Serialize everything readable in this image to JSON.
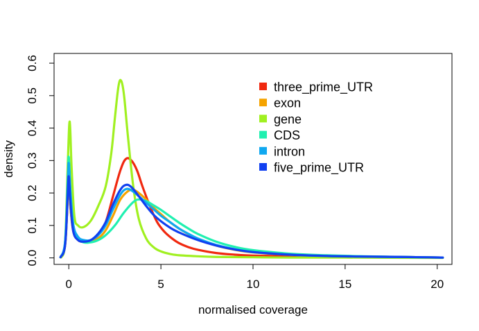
{
  "chart_data": {
    "type": "line",
    "title": "",
    "xlabel": "normalised coverage",
    "ylabel": "density",
    "xlim": [
      -0.8,
      20.8
    ],
    "ylim": [
      -0.02,
      0.63
    ],
    "x_ticks": [
      0,
      5,
      10,
      15,
      20
    ],
    "x_tick_labels": [
      "0",
      "5",
      "10",
      "15",
      "20"
    ],
    "y_ticks": [
      0.0,
      0.1,
      0.2,
      0.3,
      0.4,
      0.5,
      0.6
    ],
    "y_tick_labels": [
      "0.0",
      "0.1",
      "0.2",
      "0.3",
      "0.4",
      "0.5",
      "0.6"
    ],
    "grid": false,
    "legend_position": "top-right",
    "series": [
      {
        "name": "three_prime_UTR",
        "color": "#f0280f",
        "x": [
          -0.45,
          -0.2,
          -0.05,
          0.0,
          0.1,
          0.25,
          0.5,
          0.8,
          1.2,
          1.6,
          2.0,
          2.4,
          2.8,
          3.1,
          3.4,
          3.7,
          4.0,
          4.4,
          4.8,
          5.2,
          5.6,
          6.0,
          6.5,
          7.0,
          8.0,
          9.0,
          10.0,
          12.0,
          14.0,
          16.0,
          18.0,
          20.3
        ],
        "y": [
          0.002,
          0.04,
          0.2,
          0.245,
          0.15,
          0.08,
          0.055,
          0.05,
          0.055,
          0.07,
          0.11,
          0.19,
          0.27,
          0.305,
          0.3,
          0.27,
          0.22,
          0.16,
          0.11,
          0.08,
          0.06,
          0.045,
          0.033,
          0.025,
          0.015,
          0.01,
          0.007,
          0.005,
          0.004,
          0.003,
          0.002,
          0.001
        ]
      },
      {
        "name": "exon",
        "color": "#f5a300",
        "x": [
          -0.45,
          -0.2,
          -0.05,
          0.0,
          0.1,
          0.25,
          0.5,
          0.8,
          1.2,
          1.6,
          2.0,
          2.4,
          2.8,
          3.2,
          3.5,
          3.8,
          4.2,
          4.6,
          5.0,
          5.5,
          6.0,
          6.5,
          7.0,
          8.0,
          9.0,
          10.0,
          12.0,
          14.0,
          16.0,
          18.0,
          20.3
        ],
        "y": [
          0.002,
          0.04,
          0.2,
          0.23,
          0.15,
          0.085,
          0.06,
          0.05,
          0.05,
          0.06,
          0.085,
          0.13,
          0.18,
          0.205,
          0.21,
          0.2,
          0.18,
          0.155,
          0.135,
          0.11,
          0.09,
          0.073,
          0.058,
          0.038,
          0.025,
          0.017,
          0.01,
          0.006,
          0.004,
          0.003,
          0.001
        ]
      },
      {
        "name": "gene",
        "color": "#a0f020",
        "x": [
          -0.4,
          -0.2,
          -0.05,
          0.05,
          0.15,
          0.3,
          0.5,
          0.8,
          1.2,
          1.6,
          2.0,
          2.3,
          2.5,
          2.7,
          2.85,
          3.0,
          3.2,
          3.5,
          3.8,
          4.2,
          4.6,
          5.0,
          5.5,
          6.0,
          7.0,
          8.0,
          10.0,
          12.0,
          15.0,
          20.3
        ],
        "y": [
          0.002,
          0.05,
          0.3,
          0.42,
          0.28,
          0.13,
          0.1,
          0.095,
          0.115,
          0.16,
          0.22,
          0.32,
          0.43,
          0.53,
          0.545,
          0.5,
          0.38,
          0.22,
          0.12,
          0.06,
          0.033,
          0.02,
          0.012,
          0.008,
          0.005,
          0.003,
          0.002,
          0.001,
          0.001,
          0.0
        ]
      },
      {
        "name": "CDS",
        "color": "#20f0b0",
        "x": [
          -0.45,
          -0.2,
          -0.05,
          0.0,
          0.1,
          0.25,
          0.5,
          0.8,
          1.2,
          1.6,
          2.0,
          2.5,
          3.0,
          3.5,
          3.8,
          4.2,
          4.6,
          5.0,
          5.5,
          6.0,
          6.5,
          7.0,
          8.0,
          9.0,
          10.0,
          12.0,
          14.0,
          16.0,
          18.0,
          20.3
        ],
        "y": [
          0.002,
          0.05,
          0.25,
          0.31,
          0.2,
          0.1,
          0.06,
          0.048,
          0.048,
          0.055,
          0.07,
          0.1,
          0.14,
          0.172,
          0.18,
          0.175,
          0.162,
          0.148,
          0.128,
          0.108,
          0.09,
          0.074,
          0.05,
          0.034,
          0.024,
          0.013,
          0.008,
          0.005,
          0.003,
          0.001
        ]
      },
      {
        "name": "intron",
        "color": "#10a8f0",
        "x": [
          -0.45,
          -0.2,
          -0.05,
          0.0,
          0.1,
          0.25,
          0.5,
          0.8,
          1.2,
          1.6,
          2.0,
          2.4,
          2.8,
          3.1,
          3.4,
          3.8,
          4.2,
          4.6,
          5.0,
          5.5,
          6.0,
          6.5,
          7.0,
          8.0,
          9.0,
          10.0,
          12.0,
          14.0,
          16.0,
          18.0,
          20.3
        ],
        "y": [
          0.002,
          0.05,
          0.24,
          0.29,
          0.19,
          0.1,
          0.065,
          0.055,
          0.055,
          0.07,
          0.1,
          0.15,
          0.195,
          0.212,
          0.208,
          0.19,
          0.17,
          0.15,
          0.13,
          0.11,
          0.09,
          0.074,
          0.06,
          0.04,
          0.027,
          0.018,
          0.01,
          0.006,
          0.004,
          0.003,
          0.001
        ]
      },
      {
        "name": "five_prime_UTR",
        "color": "#1040f0",
        "x": [
          -0.45,
          -0.2,
          -0.05,
          0.0,
          0.1,
          0.25,
          0.5,
          0.8,
          1.2,
          1.6,
          2.0,
          2.4,
          2.8,
          3.1,
          3.4,
          3.8,
          4.2,
          4.6,
          5.0,
          5.5,
          6.0,
          7.0,
          8.0,
          9.0,
          10.0,
          12.0,
          14.0,
          16.0,
          18.0,
          20.3
        ],
        "y": [
          0.002,
          0.04,
          0.2,
          0.25,
          0.16,
          0.08,
          0.055,
          0.05,
          0.055,
          0.075,
          0.11,
          0.165,
          0.21,
          0.225,
          0.218,
          0.19,
          0.16,
          0.133,
          0.113,
          0.093,
          0.078,
          0.055,
          0.038,
          0.026,
          0.018,
          0.01,
          0.006,
          0.004,
          0.003,
          0.001
        ]
      }
    ]
  }
}
